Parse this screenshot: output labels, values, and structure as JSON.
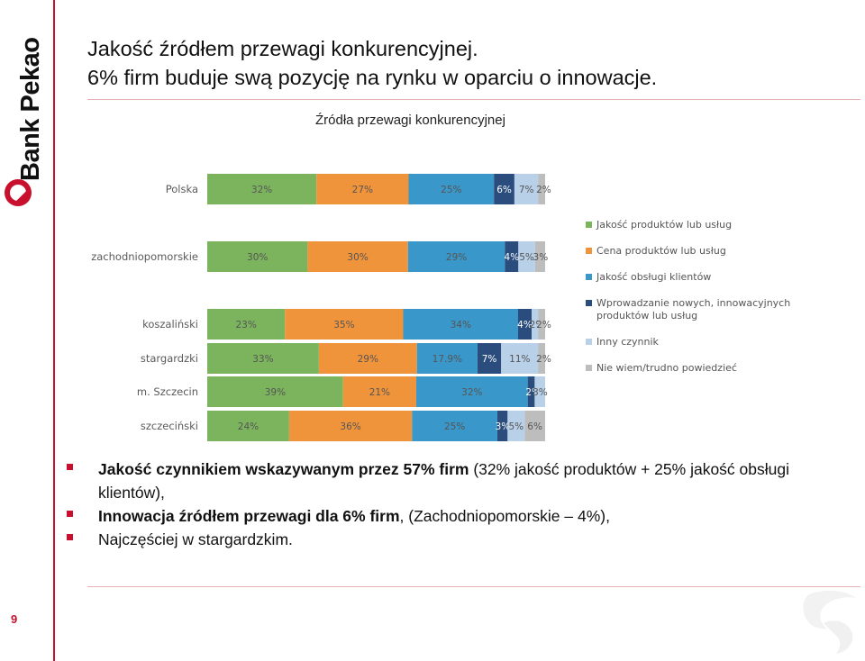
{
  "logo": {
    "text": "Bank Pekao"
  },
  "page": {
    "title_line1": "Jakość źródłem przewagi konkurencyjnej.",
    "title_line2": "6% firm buduje swą pozycję na rynku w oparciu o innowacje.",
    "number": "9"
  },
  "colors": {
    "accent": "#c8102e"
  },
  "chart_data": {
    "type": "bar",
    "orientation": "horizontal",
    "stacked": "percent",
    "title": "Źródła przewagi konkurencyjnej",
    "categories": [
      "Polska",
      "zachodniopomorskie",
      "koszaliński",
      "stargardzki",
      "m. Szczecin",
      "szczeciński"
    ],
    "series": [
      {
        "name": "Jakość produktów lub usług",
        "color": "#7cb45e",
        "values": [
          32,
          30,
          23,
          33,
          39,
          24
        ],
        "labels": [
          "32%",
          "30%",
          "23%",
          "33%",
          "39%",
          "24%"
        ]
      },
      {
        "name": "Cena produktów lub usług",
        "color": "#f0943c",
        "values": [
          27,
          30,
          35,
          29,
          21,
          36
        ],
        "labels": [
          "27%",
          "30%",
          "35%",
          "29%",
          "21%",
          "36%"
        ]
      },
      {
        "name": "Jakość obsługi klientów",
        "color": "#3a97c9",
        "values": [
          25,
          29,
          34,
          17.9,
          32,
          25
        ],
        "labels": [
          "25%",
          "29%",
          "34%",
          "17.9%",
          "32%",
          "25%"
        ]
      },
      {
        "name": "Wprowadzanie nowych, innowacyjnych produktów lub usług",
        "color": "#2b4d7e",
        "values": [
          6,
          4,
          4,
          7,
          2,
          3
        ],
        "labels": [
          "6%",
          "4%",
          "4%",
          "7%",
          "2%",
          "3%"
        ]
      },
      {
        "name": "Inny czynnik",
        "color": "#b8d0e8",
        "values": [
          7,
          5,
          2,
          11,
          3,
          5
        ],
        "labels": [
          "7%",
          "5%",
          "2%",
          "11%",
          "3%",
          "5%"
        ]
      },
      {
        "name": "Nie wiem/trudno powiedzieć",
        "color": "#bdbdbd",
        "values": [
          2,
          3,
          2,
          2,
          0,
          6
        ],
        "labels": [
          "2%",
          "3%",
          "2%",
          "2%",
          "",
          "6%"
        ]
      }
    ],
    "legend": "right",
    "grid": false
  },
  "bullets": [
    {
      "bold": "Jakość czynnikiem wskazywanym przez 57% firm",
      "normal": " (32% jakość produktów + 25% jakość obsługi klientów),"
    },
    {
      "bold": "Innowacja źródłem przewagi dla 6% firm",
      "normal": ", (Zachodniopomorskie – 4%),"
    },
    {
      "bold": "",
      "normal": "Najczęściej w stargardzkim."
    }
  ]
}
